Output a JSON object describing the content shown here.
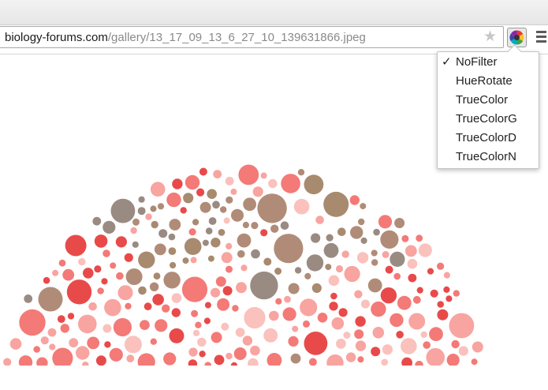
{
  "browser": {
    "url_host": "biology-forums.com",
    "url_path": "/gallery/13_17_09_13_6_27_10_139631866.jpeg",
    "star_glyph": "★",
    "extension_icon": "color-wheel-icon",
    "menu_icon": "hamburger-menu-icon"
  },
  "filter_menu": {
    "selected": "NoFilter",
    "check_glyph": "✓",
    "items": [
      {
        "label": "NoFilter",
        "checked": true
      },
      {
        "label": "HueRotate",
        "checked": false
      },
      {
        "label": "TrueColor",
        "checked": false
      },
      {
        "label": "TrueColorG",
        "checked": false
      },
      {
        "label": "TrueColorD",
        "checked": false
      },
      {
        "label": "TrueColorN",
        "checked": false
      }
    ]
  },
  "image": {
    "description_icon": "ishihara-color-plate",
    "palette": [
      "#e84a4a",
      "#f37a77",
      "#f8a4a0",
      "#fbc1bd",
      "#b08c78",
      "#9a8b82",
      "#a88a6f"
    ]
  }
}
